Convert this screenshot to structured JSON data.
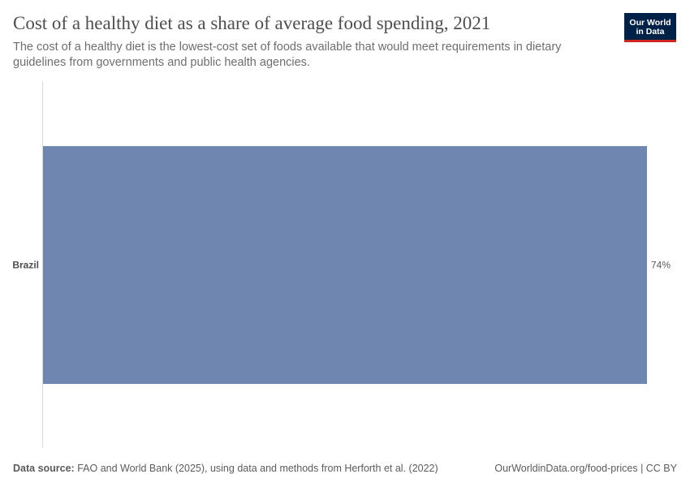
{
  "header": {
    "title": "Cost of a healthy diet as a share of average food spending, 2021",
    "subtitle": "The cost of a healthy diet is the lowest-cost set of foods available that would meet requirements in dietary guidelines from governments and public health agencies."
  },
  "logo": {
    "line1": "Our World",
    "line2": "in Data"
  },
  "footer": {
    "source_label": "Data source:",
    "source_text": "FAO and World Bank (2025), using data and methods from Herforth et al. (2022)",
    "url_text": "OurWorldinData.org/food-prices | CC BY"
  },
  "colors": {
    "bar": "#6f87b0",
    "axis": "#d9d9d9",
    "logo_bg": "#002147",
    "logo_accent": "#ce261e"
  },
  "chart_data": {
    "type": "bar",
    "orientation": "horizontal",
    "title": "Cost of a healthy diet as a share of average food spending, 2021",
    "categories": [
      "Brazil"
    ],
    "values": [
      74
    ],
    "value_labels": [
      "74%"
    ],
    "unit": "%",
    "xlim": [
      0,
      74
    ],
    "grid": false
  }
}
